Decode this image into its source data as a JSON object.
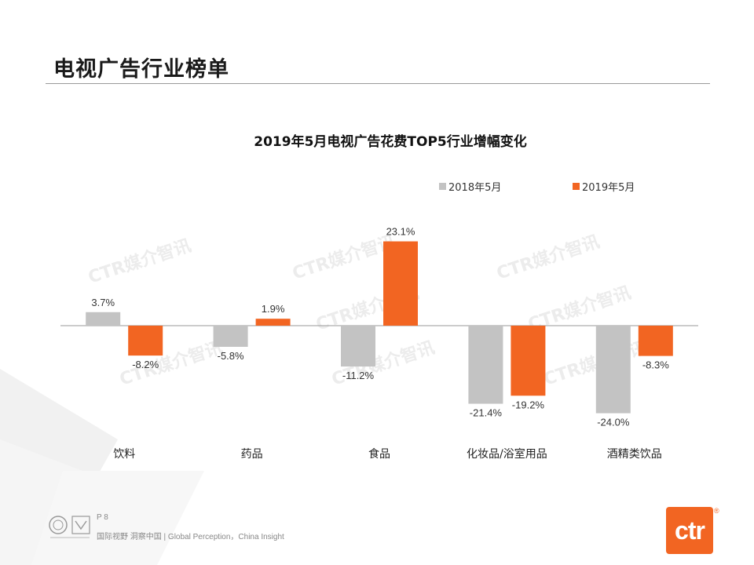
{
  "page": {
    "title": "电视广告行业榜单",
    "page_number": "P 8",
    "footer_tagline": "国际视野 洞察中国 | Global Perception，China Insight",
    "logo_text": "ctr",
    "logo_mark": "®",
    "watermark_text": "CTR媒介智讯"
  },
  "colors": {
    "series_2018": "#c3c3c3",
    "series_2019": "#f26522",
    "brand": "#f26522"
  },
  "chart_data": {
    "type": "bar",
    "title": "2019年5月电视广告花费TOP5行业增幅变化",
    "categories": [
      "饮料",
      "药品",
      "食品",
      "化妆品/浴室用品",
      "酒精类饮品"
    ],
    "series": [
      {
        "name": "2018年5月",
        "values": [
          3.7,
          -5.8,
          -11.2,
          -21.4,
          -24.0
        ],
        "labels": [
          "3.7%",
          "-5.8%",
          "-11.2%",
          "-21.4%",
          "-24.0%"
        ]
      },
      {
        "name": "2019年5月",
        "values": [
          -8.2,
          1.9,
          23.1,
          -19.2,
          -8.3
        ],
        "labels": [
          "-8.2%",
          "1.9%",
          "23.1%",
          "-19.2%",
          "-8.3%"
        ]
      }
    ],
    "xlabel": "",
    "ylabel": "",
    "ylim": [
      -24.0,
      23.1
    ],
    "legend": "top-right",
    "grid": false
  }
}
